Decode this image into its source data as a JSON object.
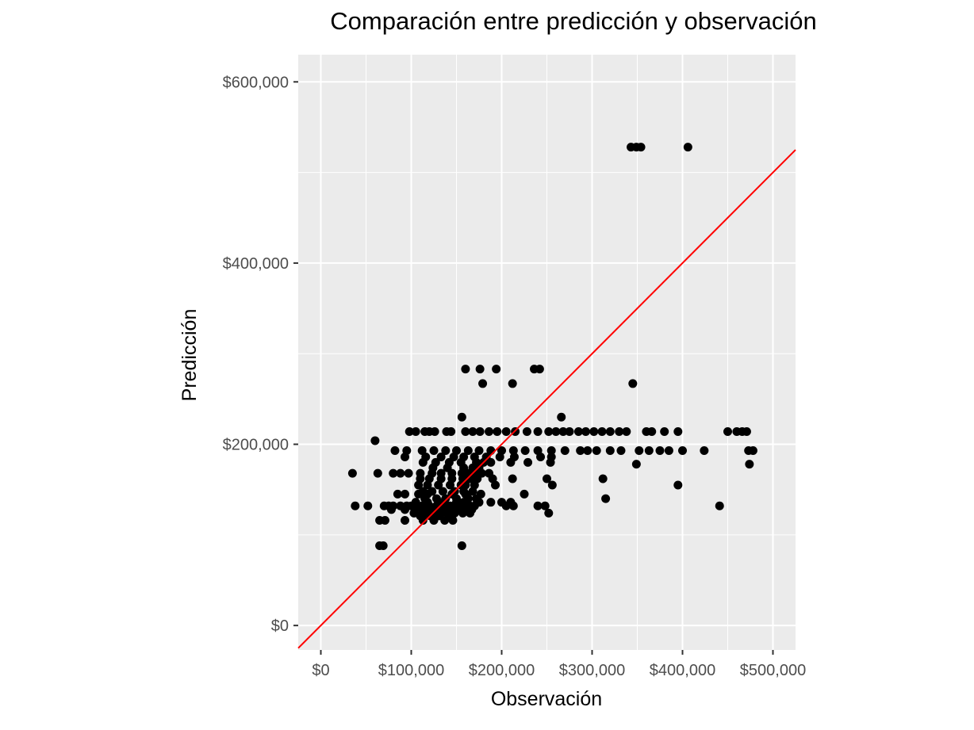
{
  "chart_data": {
    "type": "scatter",
    "title": "Comparación entre predicción y observación",
    "xlabel": "Observación",
    "ylabel": "Predicción",
    "xlim": [
      -25000,
      525000
    ],
    "ylim": [
      -27000,
      630000
    ],
    "x_ticks": [
      0,
      100000,
      200000,
      300000,
      400000,
      500000
    ],
    "x_tick_labels": [
      "$0",
      "$100,000",
      "$200,000",
      "$300,000",
      "$400,000",
      "$500,000"
    ],
    "y_ticks": [
      0,
      200000,
      400000,
      600000
    ],
    "y_tick_labels": [
      "$0",
      "$200,000",
      "$400,000",
      "$600,000"
    ],
    "grid": true,
    "reference_line": {
      "color": "#ff0000",
      "slope": 1,
      "intercept": 0
    },
    "point_color": "#000000",
    "panel_background": "#ebebeb",
    "points": [
      [
        343000,
        528000
      ],
      [
        349000,
        528000
      ],
      [
        354000,
        528000
      ],
      [
        406000,
        528000
      ],
      [
        160000,
        283000
      ],
      [
        176000,
        283000
      ],
      [
        194000,
        283000
      ],
      [
        236000,
        283000
      ],
      [
        242000,
        283000
      ],
      [
        179000,
        267000
      ],
      [
        212000,
        267000
      ],
      [
        345000,
        267000
      ],
      [
        156000,
        230000
      ],
      [
        266000,
        230000
      ],
      [
        60000,
        204000
      ],
      [
        98000,
        214000
      ],
      [
        105000,
        214000
      ],
      [
        115000,
        214000
      ],
      [
        120000,
        214000
      ],
      [
        126000,
        214000
      ],
      [
        139000,
        214000
      ],
      [
        144000,
        214000
      ],
      [
        160000,
        214000
      ],
      [
        168000,
        214000
      ],
      [
        176000,
        214000
      ],
      [
        186000,
        214000
      ],
      [
        195000,
        214000
      ],
      [
        205000,
        214000
      ],
      [
        215000,
        214000
      ],
      [
        228000,
        214000
      ],
      [
        240000,
        214000
      ],
      [
        252000,
        214000
      ],
      [
        260000,
        214000
      ],
      [
        268000,
        214000
      ],
      [
        275000,
        214000
      ],
      [
        285000,
        214000
      ],
      [
        293000,
        214000
      ],
      [
        302000,
        214000
      ],
      [
        311000,
        214000
      ],
      [
        320000,
        214000
      ],
      [
        330000,
        214000
      ],
      [
        338000,
        214000
      ],
      [
        360000,
        214000
      ],
      [
        366000,
        214000
      ],
      [
        380000,
        214000
      ],
      [
        395000,
        214000
      ],
      [
        450000,
        214000
      ],
      [
        460000,
        214000
      ],
      [
        466000,
        214000
      ],
      [
        471000,
        214000
      ],
      [
        82000,
        193000
      ],
      [
        95000,
        193000
      ],
      [
        112000,
        193000
      ],
      [
        125000,
        193000
      ],
      [
        138000,
        193000
      ],
      [
        150000,
        193000
      ],
      [
        163000,
        193000
      ],
      [
        175000,
        193000
      ],
      [
        188000,
        193000
      ],
      [
        200000,
        193000
      ],
      [
        213000,
        193000
      ],
      [
        226000,
        193000
      ],
      [
        240000,
        193000
      ],
      [
        255000,
        193000
      ],
      [
        270000,
        193000
      ],
      [
        287000,
        193000
      ],
      [
        295000,
        193000
      ],
      [
        305000,
        193000
      ],
      [
        320000,
        193000
      ],
      [
        332000,
        193000
      ],
      [
        352000,
        193000
      ],
      [
        363000,
        193000
      ],
      [
        375000,
        193000
      ],
      [
        385000,
        193000
      ],
      [
        400000,
        193000
      ],
      [
        424000,
        193000
      ],
      [
        473000,
        193000
      ],
      [
        478000,
        193000
      ],
      [
        93000,
        186000
      ],
      [
        116000,
        186000
      ],
      [
        133000,
        186000
      ],
      [
        147000,
        186000
      ],
      [
        158000,
        186000
      ],
      [
        170000,
        186000
      ],
      [
        183000,
        186000
      ],
      [
        198000,
        186000
      ],
      [
        214000,
        186000
      ],
      [
        243000,
        186000
      ],
      [
        255000,
        186000
      ],
      [
        113000,
        180000
      ],
      [
        127000,
        180000
      ],
      [
        142000,
        180000
      ],
      [
        155000,
        180000
      ],
      [
        172000,
        180000
      ],
      [
        180000,
        180000
      ],
      [
        188000,
        180000
      ],
      [
        210000,
        180000
      ],
      [
        229000,
        180000
      ],
      [
        254000,
        180000
      ],
      [
        349000,
        178000
      ],
      [
        474000,
        178000
      ],
      [
        124000,
        174000
      ],
      [
        140000,
        174000
      ],
      [
        158000,
        174000
      ],
      [
        168000,
        174000
      ],
      [
        175000,
        174000
      ],
      [
        35000,
        168000
      ],
      [
        63000,
        168000
      ],
      [
        80000,
        168000
      ],
      [
        88000,
        168000
      ],
      [
        97000,
        168000
      ],
      [
        110000,
        168000
      ],
      [
        123000,
        168000
      ],
      [
        133000,
        168000
      ],
      [
        145000,
        168000
      ],
      [
        156000,
        168000
      ],
      [
        162000,
        168000
      ],
      [
        170000,
        168000
      ],
      [
        178000,
        168000
      ],
      [
        186000,
        168000
      ],
      [
        110000,
        162000
      ],
      [
        120000,
        162000
      ],
      [
        133000,
        162000
      ],
      [
        145000,
        162000
      ],
      [
        157000,
        162000
      ],
      [
        165000,
        162000
      ],
      [
        173000,
        162000
      ],
      [
        190000,
        162000
      ],
      [
        212000,
        162000
      ],
      [
        250000,
        162000
      ],
      [
        312000,
        162000
      ],
      [
        108000,
        155000
      ],
      [
        118000,
        155000
      ],
      [
        130000,
        155000
      ],
      [
        143000,
        155000
      ],
      [
        155000,
        155000
      ],
      [
        160000,
        155000
      ],
      [
        170000,
        155000
      ],
      [
        193000,
        155000
      ],
      [
        256000,
        155000
      ],
      [
        395000,
        155000
      ],
      [
        113000,
        148000
      ],
      [
        123000,
        148000
      ],
      [
        135000,
        148000
      ],
      [
        148000,
        148000
      ],
      [
        158000,
        148000
      ],
      [
        168000,
        148000
      ],
      [
        85000,
        145000
      ],
      [
        93000,
        145000
      ],
      [
        108000,
        145000
      ],
      [
        118000,
        145000
      ],
      [
        145000,
        145000
      ],
      [
        160000,
        145000
      ],
      [
        177000,
        145000
      ],
      [
        225000,
        145000
      ],
      [
        115000,
        140000
      ],
      [
        128000,
        140000
      ],
      [
        138000,
        140000
      ],
      [
        150000,
        140000
      ],
      [
        163000,
        140000
      ],
      [
        172000,
        140000
      ],
      [
        315000,
        140000
      ],
      [
        105000,
        136000
      ],
      [
        118000,
        136000
      ],
      [
        135000,
        136000
      ],
      [
        150000,
        136000
      ],
      [
        158000,
        136000
      ],
      [
        175000,
        136000
      ],
      [
        188000,
        136000
      ],
      [
        200000,
        136000
      ],
      [
        210000,
        136000
      ],
      [
        38000,
        132000
      ],
      [
        52000,
        132000
      ],
      [
        70000,
        132000
      ],
      [
        75000,
        132000
      ],
      [
        80000,
        132000
      ],
      [
        88000,
        132000
      ],
      [
        95000,
        132000
      ],
      [
        100000,
        132000
      ],
      [
        107000,
        132000
      ],
      [
        112000,
        132000
      ],
      [
        120000,
        132000
      ],
      [
        128000,
        132000
      ],
      [
        135000,
        132000
      ],
      [
        143000,
        132000
      ],
      [
        150000,
        132000
      ],
      [
        158000,
        132000
      ],
      [
        165000,
        132000
      ],
      [
        170000,
        132000
      ],
      [
        205000,
        132000
      ],
      [
        213000,
        132000
      ],
      [
        240000,
        132000
      ],
      [
        248000,
        132000
      ],
      [
        441000,
        132000
      ],
      [
        78000,
        128000
      ],
      [
        93000,
        128000
      ],
      [
        104000,
        128000
      ],
      [
        112000,
        128000
      ],
      [
        120000,
        128000
      ],
      [
        125000,
        128000
      ],
      [
        130000,
        128000
      ],
      [
        138000,
        128000
      ],
      [
        145000,
        128000
      ],
      [
        152000,
        128000
      ],
      [
        158000,
        128000
      ],
      [
        167000,
        128000
      ],
      [
        103000,
        124000
      ],
      [
        115000,
        124000
      ],
      [
        123000,
        124000
      ],
      [
        133000,
        124000
      ],
      [
        140000,
        124000
      ],
      [
        148000,
        124000
      ],
      [
        157000,
        124000
      ],
      [
        165000,
        124000
      ],
      [
        252000,
        124000
      ],
      [
        110000,
        121000
      ],
      [
        121000,
        121000
      ],
      [
        131000,
        121000
      ],
      [
        142000,
        121000
      ],
      [
        65000,
        116000
      ],
      [
        71000,
        116000
      ],
      [
        93000,
        116000
      ],
      [
        113000,
        116000
      ],
      [
        125000,
        116000
      ],
      [
        137000,
        116000
      ],
      [
        146000,
        116000
      ],
      [
        65000,
        88000
      ],
      [
        69000,
        88000
      ],
      [
        156000,
        88000
      ]
    ]
  }
}
